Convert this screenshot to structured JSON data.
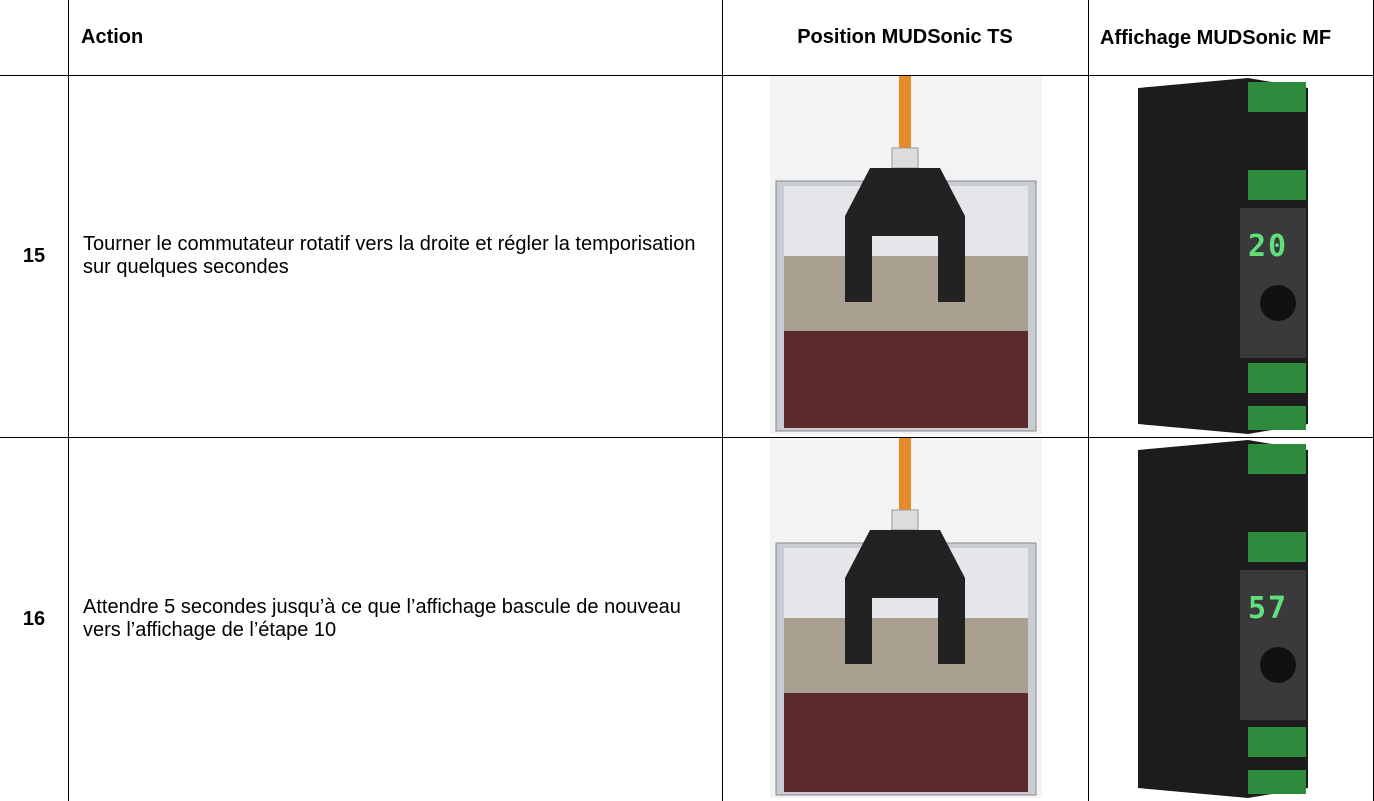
{
  "table": {
    "header": [
      "Action",
      "Position MUDSonic TS",
      "Affichage MUDSonic MF"
    ],
    "rows": [
      {
        "step": "15",
        "action": "Tourner le commutateur rotatif vers la droite et régler la temporisation sur quelques secondes",
        "display": "20"
      },
      {
        "step": "16",
        "action": "Attendre 5 secondes jusqu’à ce que l’affichage bascule de nouveau vers l’affichage de l’étape 10",
        "display": "57"
      }
    ]
  }
}
